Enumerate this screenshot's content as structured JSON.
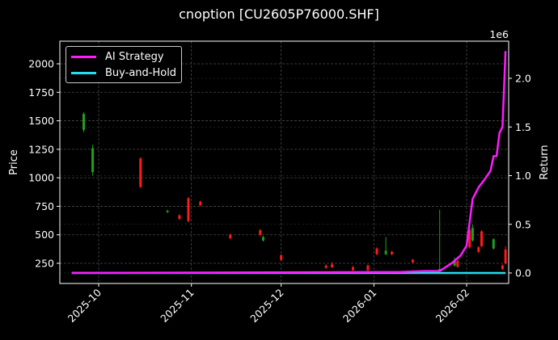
{
  "chart_data": {
    "type": "candlestick+line",
    "title": "cnoption [CU2605P76000.SHF]",
    "xlabel": "",
    "ylabel": "Price",
    "y2label": "Return",
    "y2_offset_text": "1e6",
    "x_ticks": [
      "2025-10",
      "2025-11",
      "2025-12",
      "2026-01",
      "2026-02"
    ],
    "y_ticks": [
      250,
      500,
      750,
      1000,
      1250,
      1500,
      1750,
      2000
    ],
    "y2_ticks": [
      "0.0",
      "0.5",
      "1.0",
      "1.5",
      "2.0"
    ],
    "ylim": [
      120,
      2220
    ],
    "y2lim": [
      -0.08,
      2.45
    ],
    "grid": true,
    "legend_position": "upper left",
    "legend": [
      "AI Strategy",
      "Buy-and-Hold"
    ],
    "colors": {
      "ai_strategy": "#ff1aff",
      "buy_and_hold": "#22e0f0",
      "up": "#1fa01f",
      "down": "#ff1a1a",
      "background": "#000000",
      "grid": "#555555"
    },
    "candles": [
      {
        "date": "2025-09-26",
        "open": 1420,
        "close": 1560,
        "high": 1575,
        "low": 1400,
        "dir": "up"
      },
      {
        "date": "2025-09-29",
        "open": 1050,
        "close": 1260,
        "high": 1290,
        "low": 1020,
        "dir": "up"
      },
      {
        "date": "2025-10-15",
        "open": 1170,
        "close": 920,
        "high": 1180,
        "low": 910,
        "dir": "down"
      },
      {
        "date": "2025-10-24",
        "open": 700,
        "close": 710,
        "high": 720,
        "low": 690,
        "dir": "up"
      },
      {
        "date": "2025-10-28",
        "open": 670,
        "close": 640,
        "high": 680,
        "low": 630,
        "dir": "down"
      },
      {
        "date": "2025-10-31",
        "open": 820,
        "close": 620,
        "high": 830,
        "low": 610,
        "dir": "down"
      },
      {
        "date": "2025-11-04",
        "open": 790,
        "close": 760,
        "high": 800,
        "low": 750,
        "dir": "down"
      },
      {
        "date": "2025-11-14",
        "open": 500,
        "close": 470,
        "high": 510,
        "low": 460,
        "dir": "down"
      },
      {
        "date": "2025-11-24",
        "open": 540,
        "close": 500,
        "high": 550,
        "low": 490,
        "dir": "down"
      },
      {
        "date": "2025-11-25",
        "open": 450,
        "close": 480,
        "high": 490,
        "low": 440,
        "dir": "up"
      },
      {
        "date": "2025-12-01",
        "open": 320,
        "close": 280,
        "high": 330,
        "low": 270,
        "dir": "down"
      },
      {
        "date": "2025-12-16",
        "open": 230,
        "close": 210,
        "high": 240,
        "low": 200,
        "dir": "down"
      },
      {
        "date": "2025-12-18",
        "open": 240,
        "close": 215,
        "high": 260,
        "low": 210,
        "dir": "down"
      },
      {
        "date": "2025-12-25",
        "open": 215,
        "close": 190,
        "high": 230,
        "low": 185,
        "dir": "down"
      },
      {
        "date": "2025-12-30",
        "open": 230,
        "close": 190,
        "high": 240,
        "low": 180,
        "dir": "down"
      },
      {
        "date": "2026-01-02",
        "open": 380,
        "close": 330,
        "high": 390,
        "low": 320,
        "dir": "down"
      },
      {
        "date": "2026-01-05",
        "open": 330,
        "close": 360,
        "high": 480,
        "low": 320,
        "dir": "up"
      },
      {
        "date": "2026-01-07",
        "open": 350,
        "close": 330,
        "high": 360,
        "low": 320,
        "dir": "down"
      },
      {
        "date": "2026-01-14",
        "open": 280,
        "close": 260,
        "high": 290,
        "low": 250,
        "dir": "down"
      },
      {
        "date": "2026-01-23",
        "open": 190,
        "close": 200,
        "high": 720,
        "low": 180,
        "dir": "up"
      },
      {
        "date": "2026-01-28",
        "open": 230,
        "close": 270,
        "high": 300,
        "low": 220,
        "dir": "up"
      },
      {
        "date": "2026-01-29",
        "open": 270,
        "close": 220,
        "high": 280,
        "low": 210,
        "dir": "down"
      },
      {
        "date": "2026-02-02",
        "open": 540,
        "close": 390,
        "high": 560,
        "low": 380,
        "dir": "down"
      },
      {
        "date": "2026-02-03",
        "open": 450,
        "close": 560,
        "high": 590,
        "low": 440,
        "dir": "up"
      },
      {
        "date": "2026-02-05",
        "open": 390,
        "close": 350,
        "high": 400,
        "low": 340,
        "dir": "down"
      },
      {
        "date": "2026-02-06",
        "open": 530,
        "close": 400,
        "high": 540,
        "low": 390,
        "dir": "down"
      },
      {
        "date": "2026-02-10",
        "open": 380,
        "close": 460,
        "high": 470,
        "low": 370,
        "dir": "up"
      },
      {
        "date": "2026-02-13",
        "open": 230,
        "close": 200,
        "high": 240,
        "low": 190,
        "dir": "down"
      },
      {
        "date": "2026-02-14",
        "open": 370,
        "close": 250,
        "high": 400,
        "low": 240,
        "dir": "down"
      }
    ],
    "series": [
      {
        "name": "AI Strategy",
        "x": [
          "2025-09-22",
          "2026-01-10",
          "2026-01-18",
          "2026-01-21",
          "2026-01-23",
          "2026-01-25",
          "2026-01-27",
          "2026-01-30",
          "2026-02-01",
          "2026-02-03",
          "2026-02-05",
          "2026-02-07",
          "2026-02-09",
          "2026-02-10",
          "2026-02-11",
          "2026-02-12",
          "2026-02-13",
          "2026-02-14"
        ],
        "values": [
          0.0,
          0.01,
          0.02,
          0.02,
          0.02,
          0.06,
          0.1,
          0.18,
          0.28,
          0.76,
          0.88,
          0.96,
          1.05,
          1.2,
          1.2,
          1.44,
          1.5,
          2.28
        ]
      },
      {
        "name": "Buy-and-Hold",
        "x": [
          "2025-09-22",
          "2026-02-14"
        ],
        "values": [
          0.0,
          0.0
        ]
      }
    ]
  },
  "legend": {
    "items": [
      {
        "label": "AI Strategy",
        "color": "#ff1aff"
      },
      {
        "label": "Buy-and-Hold",
        "color": "#22e0f0"
      }
    ]
  },
  "axes": {
    "title": "cnoption [CU2605P76000.SHF]",
    "ylabel": "Price",
    "y2label": "Return",
    "y2_offset": "1e6"
  }
}
